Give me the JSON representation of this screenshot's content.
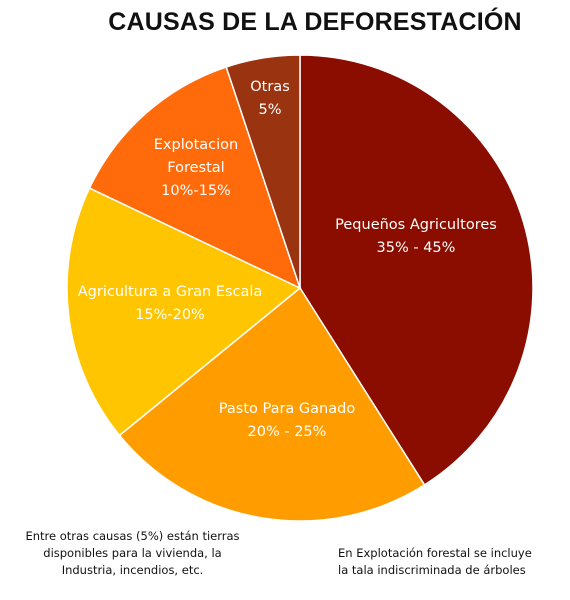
{
  "title": "CAUSAS DE LA DEFORESTACIÓN",
  "chart_data": {
    "type": "pie",
    "title": "CAUSAS DE LA DEFORESTACIÓN",
    "slices": [
      {
        "name": "Pequeños Agricultores",
        "value_label": "35% - 45%",
        "value": 40,
        "color": "#8b0d00"
      },
      {
        "name": "Pasto Para Ganado",
        "value_label": "20% - 25%",
        "value": 22.5,
        "color": "#ff9d00"
      },
      {
        "name": "Agricultura a Gran Escala",
        "value_label": "15%-20%",
        "value": 17.5,
        "color": "#ffc500"
      },
      {
        "name": "Explotacion Forestal",
        "value_label": "10%-15%",
        "value": 12.5,
        "color": "#ff6a0a"
      },
      {
        "name": "Otras",
        "value_label": "5%",
        "value": 5,
        "color": "#9a3310"
      }
    ]
  },
  "notes": {
    "left": "Entre otras causas (5%) están tierras disponibles para la vivienda, la Industria, incendios, etc.",
    "right_line1": "En Explotación forestal se incluye",
    "right_line2": "la tala indiscriminada de árboles"
  }
}
